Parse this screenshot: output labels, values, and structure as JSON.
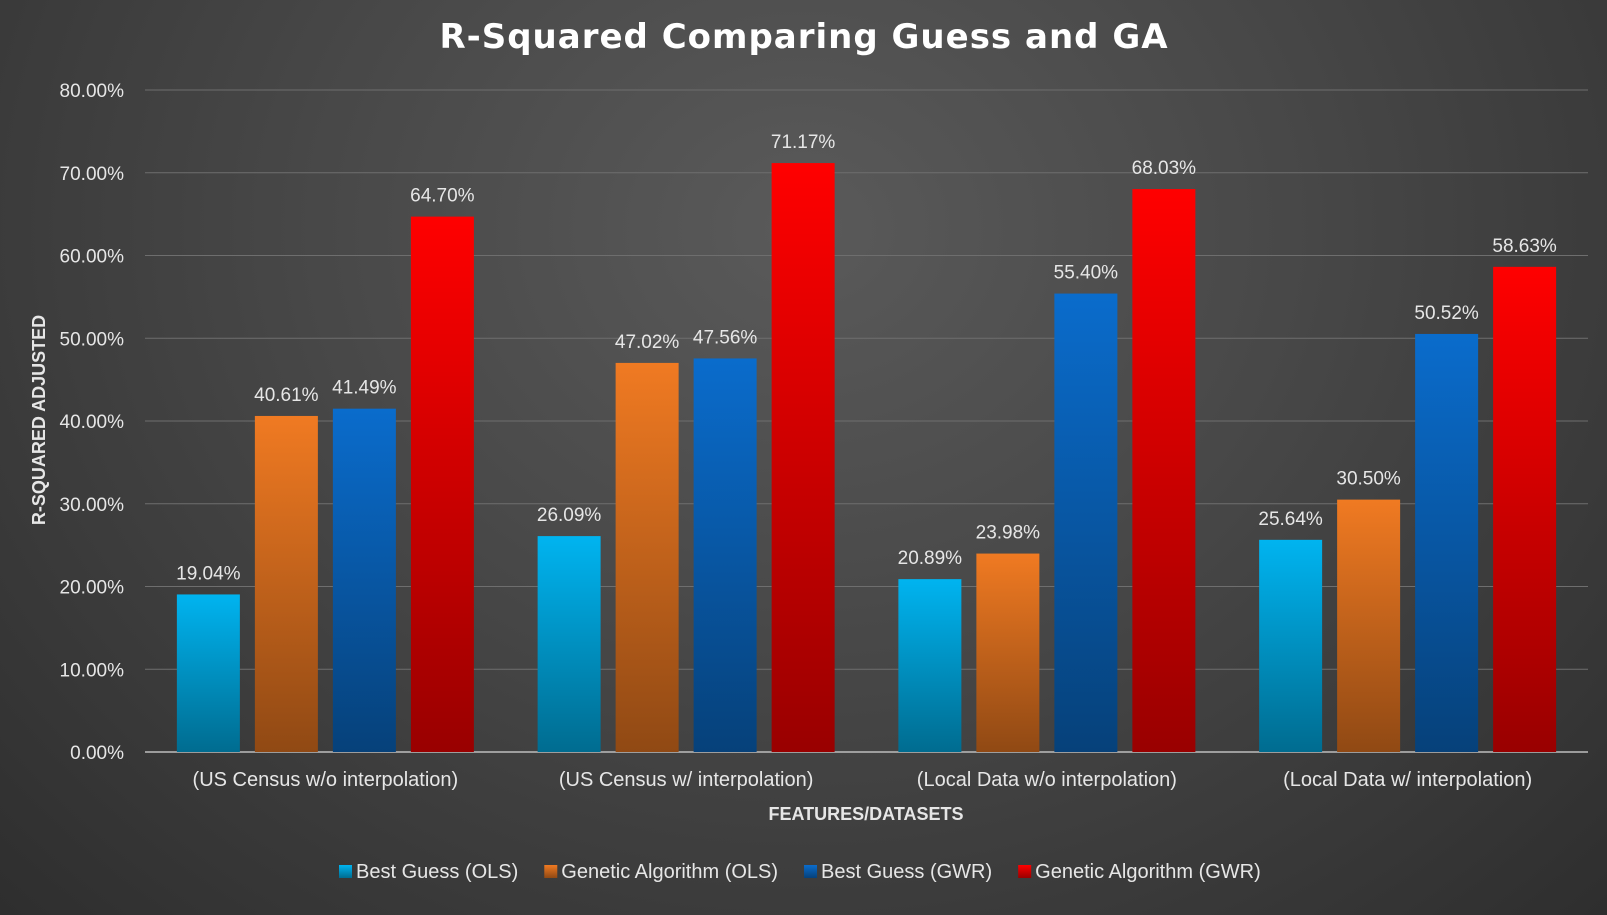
{
  "chart_data": {
    "type": "bar",
    "title": "R-Squared Comparing Guess and GA",
    "xlabel": "FEATURES/DATASETS",
    "ylabel": "R-SQUARED ADJUSTED",
    "ylim": [
      0,
      80
    ],
    "yticks": [
      "0.00%",
      "10.00%",
      "20.00%",
      "30.00%",
      "40.00%",
      "50.00%",
      "60.00%",
      "70.00%",
      "80.00%"
    ],
    "grid": true,
    "legend_position": "bottom",
    "categories": [
      "(US Census w/o interpolation)",
      "(US Census w/ interpolation)",
      "(Local Data w/o interpolation)",
      "(Local Data w/ interpolation)"
    ],
    "series": [
      {
        "name": "Best Guess (OLS)",
        "color": "#00b4f0",
        "values": [
          19.04,
          26.09,
          20.89,
          25.64
        ],
        "labels": [
          "19.04%",
          "26.09%",
          "20.89%",
          "25.64%"
        ]
      },
      {
        "name": "Genetic Algorithm (OLS)",
        "color": "#f07a22",
        "values": [
          40.61,
          47.02,
          23.98,
          30.5
        ],
        "labels": [
          "40.61%",
          "47.02%",
          "23.98%",
          "30.50%"
        ]
      },
      {
        "name": "Best Guess (GWR)",
        "color": "#0a6ccc",
        "values": [
          41.49,
          47.56,
          55.4,
          50.52
        ],
        "labels": [
          "41.49%",
          "47.56%",
          "55.40%",
          "50.52%"
        ]
      },
      {
        "name": "Genetic Algorithm (GWR)",
        "color": "#ff0000",
        "values": [
          64.7,
          71.17,
          68.03,
          58.63
        ],
        "labels": [
          "64.70%",
          "71.17%",
          "68.03%",
          "58.63%"
        ]
      }
    ]
  }
}
